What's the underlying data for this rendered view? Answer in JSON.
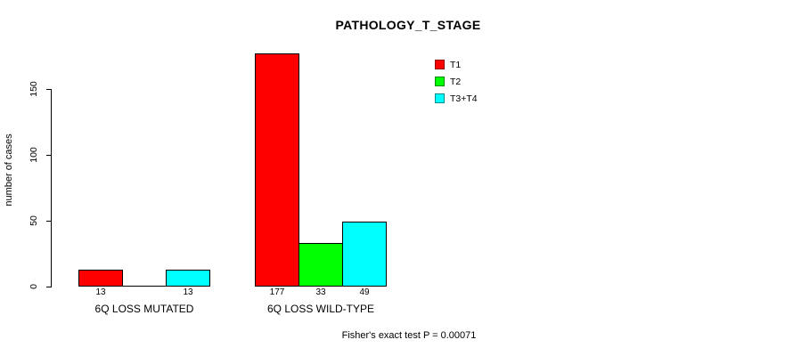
{
  "chart_data": {
    "type": "bar",
    "title": "PATHOLOGY_T_STAGE",
    "ylabel": "number of cases",
    "xlabel": "",
    "footnote": "Fisher's exact test P = 0.00071",
    "categories": [
      "6Q LOSS MUTATED",
      "6Q LOSS WILD-TYPE"
    ],
    "series": [
      {
        "name": "T1",
        "color": "#ff0000",
        "values": [
          13,
          177
        ]
      },
      {
        "name": "T2",
        "color": "#00ff00",
        "values": [
          0,
          33
        ]
      },
      {
        "name": "T3+T4",
        "color": "#00ffff",
        "values": [
          13,
          49
        ]
      }
    ],
    "value_labels": [
      [
        "13",
        "",
        "13"
      ],
      [
        "177",
        "33",
        "49"
      ]
    ],
    "yticks": [
      0,
      50,
      100,
      150
    ],
    "ylim": [
      0,
      177
    ],
    "grid": false,
    "legend_position": "top-right",
    "background": "#ffffff",
    "axis_color": "#000000",
    "bar_border_color": "#000000"
  }
}
